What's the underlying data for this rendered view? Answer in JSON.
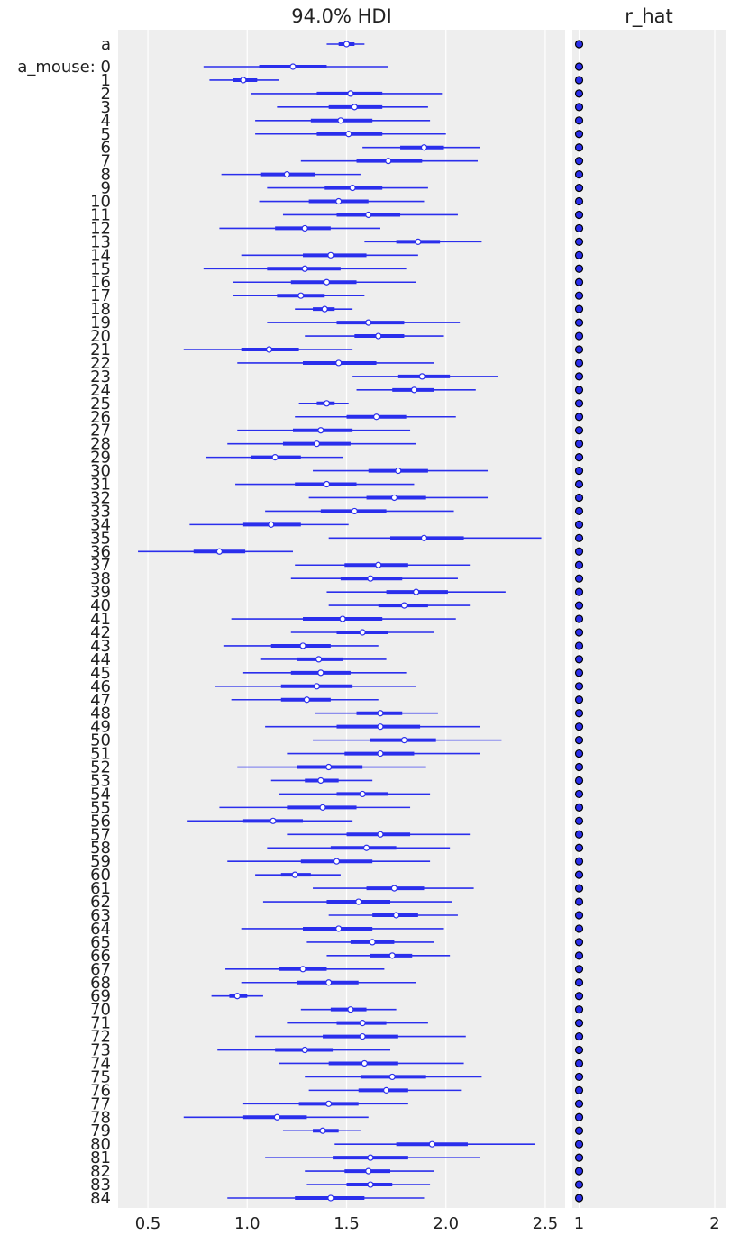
{
  "chart_data": [
    {
      "type": "forest",
      "title": "94.0% HDI",
      "xlabel": "",
      "ylabel": "",
      "xlim": [
        0.35,
        2.6
      ],
      "xticks": [
        0.5,
        1.0,
        1.5,
        2.0,
        2.5
      ],
      "xtick_labels": [
        "0.5",
        "1.0",
        "1.5",
        "2.0",
        "2.5"
      ],
      "grid": true,
      "colors": {
        "interval": "#2a2eec",
        "point_fill": "#ffffff",
        "background": "#eeeeee",
        "grid": "#ffffff"
      },
      "row_labels": [
        "a",
        "a_mouse: 0",
        "1",
        "2",
        "3",
        "4",
        "5",
        "6",
        "7",
        "8",
        "9",
        "10",
        "11",
        "12",
        "13",
        "14",
        "15",
        "16",
        "17",
        "18",
        "19",
        "20",
        "21",
        "22",
        "23",
        "24",
        "25",
        "26",
        "27",
        "28",
        "29",
        "30",
        "31",
        "32",
        "33",
        "34",
        "35",
        "36",
        "37",
        "38",
        "39",
        "40",
        "41",
        "42",
        "43",
        "44",
        "45",
        "46",
        "47",
        "48",
        "49",
        "50",
        "51",
        "52",
        "53",
        "54",
        "55",
        "56",
        "57",
        "58",
        "59",
        "60",
        "61",
        "62",
        "63",
        "64",
        "65",
        "66",
        "67",
        "68",
        "69",
        "70",
        "71",
        "72",
        "73",
        "74",
        "75",
        "76",
        "77",
        "78",
        "79",
        "80",
        "81",
        "82",
        "83",
        "84"
      ],
      "hdi_low": [
        1.4,
        0.78,
        0.81,
        1.02,
        1.15,
        1.04,
        1.04,
        1.58,
        1.27,
        0.87,
        1.1,
        1.06,
        1.18,
        0.86,
        1.59,
        0.97,
        0.78,
        0.93,
        0.93,
        1.24,
        1.1,
        1.29,
        0.68,
        0.95,
        1.53,
        1.55,
        1.26,
        1.24,
        0.95,
        0.9,
        0.79,
        1.33,
        0.94,
        1.31,
        1.09,
        0.71,
        1.41,
        0.45,
        1.24,
        1.22,
        1.4,
        1.41,
        0.92,
        1.22,
        0.88,
        1.07,
        0.98,
        0.84,
        0.92,
        1.34,
        1.09,
        1.33,
        1.2,
        0.95,
        1.12,
        1.16,
        0.86,
        0.7,
        1.2,
        1.1,
        0.9,
        1.04,
        1.33,
        1.08,
        1.41,
        0.97,
        1.3,
        1.4,
        0.89,
        0.97,
        0.82,
        1.27,
        1.2,
        1.04,
        0.85,
        1.16,
        1.29,
        1.31,
        0.98,
        0.68,
        1.18,
        1.44,
        1.09,
        1.29,
        1.3,
        0.9
      ],
      "iqr_low": [
        1.46,
        1.06,
        0.93,
        1.35,
        1.41,
        1.32,
        1.35,
        1.77,
        1.55,
        1.07,
        1.39,
        1.31,
        1.45,
        1.14,
        1.75,
        1.28,
        1.1,
        1.22,
        1.15,
        1.33,
        1.45,
        1.54,
        0.97,
        1.28,
        1.76,
        1.73,
        1.35,
        1.5,
        1.23,
        1.18,
        1.02,
        1.61,
        1.24,
        1.6,
        1.37,
        0.98,
        1.72,
        0.73,
        1.49,
        1.47,
        1.7,
        1.66,
        1.28,
        1.45,
        1.12,
        1.25,
        1.22,
        1.17,
        1.17,
        1.55,
        1.45,
        1.62,
        1.49,
        1.25,
        1.29,
        1.45,
        1.2,
        0.98,
        1.5,
        1.42,
        1.27,
        1.17,
        1.6,
        1.4,
        1.63,
        1.28,
        1.52,
        1.62,
        1.16,
        1.25,
        0.91,
        1.42,
        1.45,
        1.38,
        1.14,
        1.41,
        1.57,
        1.56,
        1.26,
        0.98,
        1.33,
        1.75,
        1.43,
        1.49,
        1.5,
        1.24
      ],
      "iqr_high": [
        1.54,
        1.4,
        1.05,
        1.68,
        1.68,
        1.63,
        1.68,
        1.99,
        1.88,
        1.34,
        1.68,
        1.61,
        1.77,
        1.42,
        1.97,
        1.6,
        1.47,
        1.55,
        1.39,
        1.44,
        1.79,
        1.79,
        1.26,
        1.65,
        2.02,
        1.94,
        1.44,
        1.8,
        1.53,
        1.52,
        1.27,
        1.91,
        1.55,
        1.9,
        1.7,
        1.27,
        2.09,
        0.99,
        1.81,
        1.78,
        2.01,
        1.91,
        1.68,
        1.71,
        1.42,
        1.48,
        1.52,
        1.53,
        1.42,
        1.78,
        1.87,
        1.95,
        1.84,
        1.58,
        1.46,
        1.71,
        1.55,
        1.28,
        1.82,
        1.75,
        1.63,
        1.32,
        1.89,
        1.72,
        1.86,
        1.63,
        1.74,
        1.83,
        1.4,
        1.56,
        1.0,
        1.6,
        1.7,
        1.76,
        1.43,
        1.76,
        1.9,
        1.81,
        1.56,
        1.3,
        1.46,
        2.11,
        1.81,
        1.72,
        1.73,
        1.59
      ],
      "hdi_high": [
        1.59,
        1.71,
        1.16,
        1.98,
        1.91,
        1.92,
        2.0,
        2.17,
        2.16,
        1.57,
        1.91,
        1.89,
        2.06,
        1.67,
        2.18,
        1.86,
        1.8,
        1.85,
        1.59,
        1.53,
        2.07,
        1.99,
        1.53,
        1.94,
        2.26,
        2.15,
        1.51,
        2.05,
        1.82,
        1.85,
        1.48,
        2.21,
        1.84,
        2.21,
        2.04,
        1.51,
        2.48,
        1.23,
        2.12,
        2.06,
        2.3,
        2.12,
        2.05,
        1.94,
        1.66,
        1.7,
        1.8,
        1.85,
        1.66,
        1.96,
        2.17,
        2.28,
        2.17,
        1.9,
        1.63,
        1.92,
        1.82,
        1.53,
        2.12,
        2.02,
        1.92,
        1.47,
        2.14,
        2.03,
        2.06,
        1.99,
        1.94,
        2.02,
        1.69,
        1.85,
        1.08,
        1.75,
        1.91,
        2.1,
        1.72,
        2.09,
        2.18,
        2.08,
        1.81,
        1.61,
        1.57,
        2.45,
        2.17,
        1.94,
        1.92,
        1.89
      ],
      "mean": [
        1.5,
        1.23,
        0.98,
        1.52,
        1.54,
        1.47,
        1.51,
        1.89,
        1.71,
        1.2,
        1.53,
        1.46,
        1.61,
        1.29,
        1.86,
        1.42,
        1.29,
        1.4,
        1.27,
        1.39,
        1.61,
        1.66,
        1.11,
        1.46,
        1.88,
        1.84,
        1.4,
        1.65,
        1.37,
        1.35,
        1.14,
        1.76,
        1.4,
        1.74,
        1.54,
        1.12,
        1.89,
        0.86,
        1.66,
        1.62,
        1.85,
        1.79,
        1.48,
        1.58,
        1.28,
        1.36,
        1.37,
        1.35,
        1.3,
        1.67,
        1.67,
        1.79,
        1.67,
        1.41,
        1.37,
        1.58,
        1.38,
        1.13,
        1.67,
        1.6,
        1.45,
        1.24,
        1.74,
        1.56,
        1.75,
        1.46,
        1.63,
        1.73,
        1.28,
        1.41,
        0.95,
        1.52,
        1.58,
        1.58,
        1.29,
        1.59,
        1.73,
        1.7,
        1.41,
        1.15,
        1.38,
        1.93,
        1.62,
        1.61,
        1.62,
        1.42
      ]
    },
    {
      "type": "scatter",
      "title": "r_hat",
      "xlim": [
        0.95,
        2.08
      ],
      "xticks": [
        1,
        2
      ],
      "xtick_labels": [
        "1",
        "2"
      ],
      "grid": true,
      "colors": {
        "marker_fill": "#2a2eec",
        "marker_edge": "#000000"
      },
      "values": [
        1,
        1,
        1,
        1,
        1,
        1,
        1,
        1,
        1,
        1,
        1,
        1,
        1,
        1,
        1,
        1,
        1,
        1,
        1,
        1,
        1,
        1,
        1,
        1,
        1,
        1,
        1,
        1,
        1,
        1,
        1,
        1,
        1,
        1,
        1,
        1,
        1,
        1,
        1,
        1,
        1,
        1,
        1,
        1,
        1,
        1,
        1,
        1,
        1,
        1,
        1,
        1,
        1,
        1,
        1,
        1,
        1,
        1,
        1,
        1,
        1,
        1,
        1,
        1,
        1,
        1,
        1,
        1,
        1,
        1,
        1,
        1,
        1,
        1,
        1,
        1,
        1,
        1,
        1,
        1,
        1,
        1,
        1,
        1,
        1,
        1
      ]
    }
  ]
}
